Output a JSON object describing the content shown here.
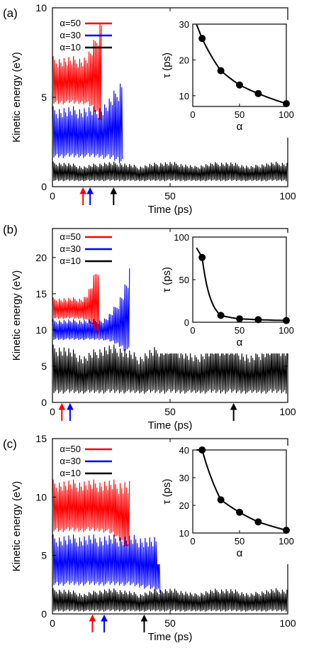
{
  "chart_data": [
    {
      "panel_label": "(a)",
      "type": "line",
      "xlabel": "Time (ps)",
      "ylabel": "Kinetic energy (eV)",
      "xlim": [
        0,
        100
      ],
      "ylim": [
        0,
        10
      ],
      "xticks": [
        "0",
        "50",
        "100"
      ],
      "yticks": [
        "0",
        "5",
        "10"
      ],
      "legend_position": "top-left",
      "series": [
        {
          "name": "α=50",
          "color": "#ff0000",
          "x_end": 21,
          "band": [
            4.6,
            7.3
          ],
          "end_peak": 10
        },
        {
          "name": "α=30",
          "color": "#0000ff",
          "x_end": 30,
          "band": [
            1.6,
            4.5
          ],
          "end_peak": 6.4
        },
        {
          "name": "α=10",
          "color": "#000000",
          "x_end": 100,
          "band": [
            0.3,
            1.4
          ],
          "end_peak": 1.4
        }
      ],
      "arrows": [
        {
          "x": 13,
          "color": "#ff0000"
        },
        {
          "x": 16,
          "color": "#0000ff"
        },
        {
          "x": 26,
          "color": "#000000"
        }
      ],
      "inset": {
        "xlabel": "α",
        "ylabel": "τ (ps)",
        "xlim": [
          0,
          100
        ],
        "ylim": [
          7,
          30
        ],
        "xticks": [
          "0",
          "50",
          "100"
        ],
        "yticks": [
          "10",
          "20",
          "30"
        ],
        "points": [
          [
            10,
            26
          ],
          [
            30,
            17
          ],
          [
            50,
            13
          ],
          [
            70,
            10.6
          ],
          [
            100,
            7.8
          ]
        ]
      }
    },
    {
      "panel_label": "(b)",
      "type": "line",
      "xlabel": "Time (ps)",
      "ylabel": "Kinetic energy (eV)",
      "xlim": [
        0,
        100
      ],
      "ylim": [
        0,
        24
      ],
      "xticks": [
        "0",
        "50",
        "100"
      ],
      "yticks": [
        "0",
        "5",
        "10",
        "15",
        "20"
      ],
      "legend_position": "top-left",
      "series": [
        {
          "name": "α=50",
          "color": "#ff0000",
          "x_end": 20,
          "band": [
            11.5,
            14.5
          ],
          "end_peak": 21
        },
        {
          "name": "α=30",
          "color": "#0000ff",
          "x_end": 33,
          "band": [
            8.6,
            11.5
          ],
          "end_peak": 19
        },
        {
          "name": "α=10",
          "color": "#000000",
          "x_end": 100,
          "band": [
            1.2,
            8
          ],
          "end_peak": 8
        }
      ],
      "arrows": [
        {
          "x": 4,
          "color": "#ff0000"
        },
        {
          "x": 7.5,
          "color": "#0000ff"
        },
        {
          "x": 77,
          "color": "#000000"
        }
      ],
      "inset": {
        "xlabel": "α",
        "ylabel": "τ (ps)",
        "xlim": [
          0,
          100
        ],
        "ylim": [
          0,
          100
        ],
        "xticks": [
          "0",
          "50",
          "100"
        ],
        "yticks": [
          "0",
          "50",
          "100"
        ],
        "points": [
          [
            10,
            76
          ],
          [
            30,
            8
          ],
          [
            50,
            4
          ],
          [
            70,
            3
          ],
          [
            100,
            2
          ]
        ]
      }
    },
    {
      "panel_label": "(c)",
      "type": "line",
      "xlabel": "Time (ps)",
      "ylabel": "Kinetic energy (eV)",
      "xlim": [
        0,
        100
      ],
      "ylim": [
        0,
        15
      ],
      "xticks": [
        "0",
        "50",
        "100"
      ],
      "yticks": [
        "0",
        "5",
        "10",
        "15"
      ],
      "legend_position": "top-left",
      "series": [
        {
          "name": "α=50",
          "color": "#ff0000",
          "x_end": 33,
          "band": [
            7.0,
            11.5
          ],
          "end_peak": 11.5
        },
        {
          "name": "α=30",
          "color": "#0000ff",
          "x_end": 46,
          "band": [
            2.4,
            6.8
          ],
          "end_peak": 6.5
        },
        {
          "name": "α=10",
          "color": "#000000",
          "x_end": 100,
          "band": [
            0.2,
            2.2
          ],
          "end_peak": 2.2
        }
      ],
      "arrows": [
        {
          "x": 17,
          "color": "#ff0000"
        },
        {
          "x": 22,
          "color": "#0000ff"
        },
        {
          "x": 39,
          "color": "#000000"
        }
      ],
      "inset": {
        "xlabel": "α",
        "ylabel": "τ (ps)",
        "xlim": [
          0,
          100
        ],
        "ylim": [
          10,
          40
        ],
        "xticks": [
          "0",
          "50",
          "100"
        ],
        "yticks": [
          "10",
          "20",
          "30",
          "40"
        ],
        "points": [
          [
            10,
            40
          ],
          [
            30,
            22
          ],
          [
            50,
            17.5
          ],
          [
            70,
            14
          ],
          [
            100,
            11
          ]
        ]
      }
    }
  ]
}
